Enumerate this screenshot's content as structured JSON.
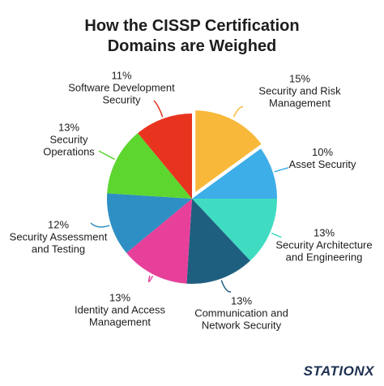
{
  "chart_data": {
    "type": "pie",
    "title": "How the CISSP Certification Domains are Weighed",
    "categories": [
      "Security and Risk Management",
      "Asset Security",
      "Security Architecture and Engineering",
      "Communication and Network Security",
      "Identity and Access Management",
      "Security Assessment and Testing",
      "Security Operations",
      "Software Development Security"
    ],
    "values": [
      15,
      10,
      13,
      13,
      13,
      12,
      13,
      11
    ],
    "value_labels": [
      "15%",
      "10%",
      "13%",
      "13%",
      "13%",
      "12%",
      "13%",
      "11%"
    ],
    "colors": [
      "#f8b83a",
      "#3eaee8",
      "#40dcc2",
      "#1e5f80",
      "#e6409a",
      "#2e8fc4",
      "#5dd630",
      "#e8341e"
    ]
  },
  "logo": "STATIONX"
}
